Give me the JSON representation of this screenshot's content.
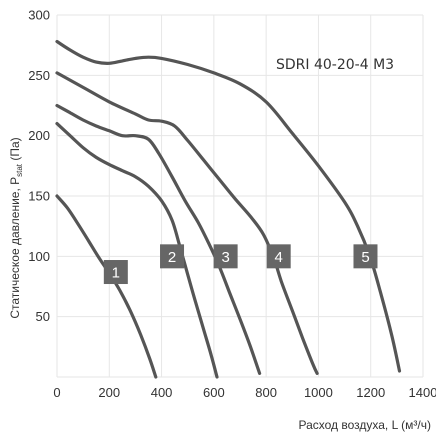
{
  "chart_data": {
    "type": "line",
    "model": "SDRI 40-20-4 M3",
    "xlabel": "Расход воздуха, L (м³/ч)",
    "ylabel_main": "Статическое давление, P",
    "ylabel_sub": "stat",
    "ylabel_unit": " (Па)",
    "xlim": [
      0,
      1400
    ],
    "ylim": [
      0,
      300
    ],
    "x_ticks": [
      0,
      200,
      400,
      600,
      800,
      1000,
      1200,
      1400
    ],
    "y_ticks": [
      50,
      100,
      150,
      200,
      250,
      300
    ],
    "x_tick_labels": [
      "0",
      "200",
      "400",
      "600",
      "800",
      "1000",
      "1200",
      "1400"
    ],
    "y_tick_labels": [
      "50",
      "100",
      "150",
      "200",
      "250",
      "300"
    ],
    "grid": true,
    "colors": {
      "curve": "#555555",
      "label_box": "#666666",
      "grid": "#e6e6e6"
    },
    "series": [
      {
        "name": "1",
        "label_at": [
          225,
          87
        ],
        "points": [
          [
            0,
            150
          ],
          [
            40,
            140
          ],
          [
            80,
            127
          ],
          [
            120,
            113
          ],
          [
            160,
            99
          ],
          [
            200,
            86
          ],
          [
            240,
            72
          ],
          [
            280,
            55
          ],
          [
            320,
            35
          ],
          [
            355,
            15
          ],
          [
            378,
            0
          ]
        ]
      },
      {
        "name": "2",
        "label_at": [
          440,
          100
        ],
        "points": [
          [
            0,
            210
          ],
          [
            50,
            200
          ],
          [
            100,
            190
          ],
          [
            150,
            182
          ],
          [
            200,
            176
          ],
          [
            250,
            171
          ],
          [
            300,
            166
          ],
          [
            350,
            158
          ],
          [
            400,
            146
          ],
          [
            440,
            130
          ],
          [
            470,
            108
          ],
          [
            500,
            85
          ],
          [
            530,
            62
          ],
          [
            560,
            40
          ],
          [
            590,
            18
          ],
          [
            612,
            0
          ]
        ]
      },
      {
        "name": "3",
        "label_at": [
          645,
          100
        ],
        "points": [
          [
            0,
            225
          ],
          [
            50,
            219
          ],
          [
            100,
            213
          ],
          [
            150,
            208
          ],
          [
            200,
            204
          ],
          [
            250,
            200
          ],
          [
            300,
            200
          ],
          [
            350,
            197
          ],
          [
            390,
            185
          ],
          [
            440,
            166
          ],
          [
            490,
            146
          ],
          [
            540,
            128
          ],
          [
            580,
            111
          ],
          [
            620,
            92
          ],
          [
            660,
            70
          ],
          [
            700,
            48
          ],
          [
            740,
            25
          ],
          [
            775,
            3
          ]
        ]
      },
      {
        "name": "4",
        "label_at": [
          848,
          100
        ],
        "points": [
          [
            0,
            252
          ],
          [
            100,
            240
          ],
          [
            200,
            228
          ],
          [
            300,
            218
          ],
          [
            350,
            213
          ],
          [
            400,
            212
          ],
          [
            450,
            208
          ],
          [
            500,
            196
          ],
          [
            560,
            180
          ],
          [
            620,
            164
          ],
          [
            680,
            148
          ],
          [
            740,
            133
          ],
          [
            790,
            118
          ],
          [
            830,
            98
          ],
          [
            860,
            78
          ],
          [
            900,
            55
          ],
          [
            940,
            32
          ],
          [
            980,
            10
          ],
          [
            995,
            3
          ]
        ]
      },
      {
        "name": "5",
        "label_at": [
          1180,
          100
        ],
        "points": [
          [
            0,
            278
          ],
          [
            50,
            271
          ],
          [
            100,
            265
          ],
          [
            150,
            261
          ],
          [
            200,
            260
          ],
          [
            250,
            262
          ],
          [
            300,
            264
          ],
          [
            350,
            265
          ],
          [
            400,
            264
          ],
          [
            500,
            259
          ],
          [
            600,
            252
          ],
          [
            700,
            243
          ],
          [
            800,
            228
          ],
          [
            900,
            202
          ],
          [
            1000,
            175
          ],
          [
            1100,
            145
          ],
          [
            1150,
            125
          ],
          [
            1200,
            98
          ],
          [
            1240,
            68
          ],
          [
            1280,
            35
          ],
          [
            1310,
            5
          ]
        ]
      }
    ]
  }
}
